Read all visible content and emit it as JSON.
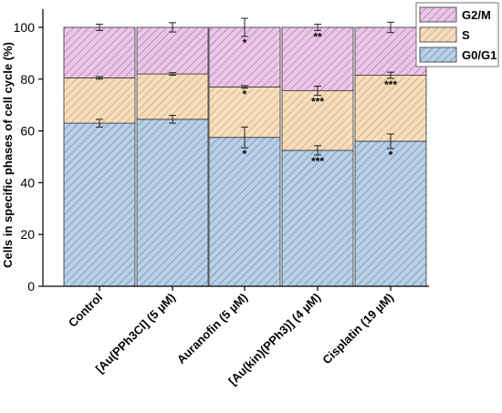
{
  "chart_data": {
    "type": "bar",
    "stacked": true,
    "ylabel": "Cells in specific phases of cell cycle (%)",
    "xlabel": "",
    "ylim": [
      0,
      100
    ],
    "yticks": [
      0,
      20,
      40,
      60,
      80,
      100
    ],
    "legend_position": "top-right",
    "categories": [
      "Control",
      "[Au(PPh3Cl] (5 µM)",
      "Auranofin (5 µM)",
      "[Au(kin)(PPh3)] (4 µM)",
      "Cisplatin (19 µM)"
    ],
    "series": [
      {
        "name": "G0/G1",
        "values": [
          63.0,
          64.5,
          57.5,
          52.5,
          56.0
        ],
        "errors": [
          1.5,
          1.5,
          4.0,
          1.8,
          2.8
        ],
        "significance": [
          "",
          "",
          "*",
          "***",
          "*"
        ],
        "fill": "#b9d0e6",
        "hatch": "#6f93bb"
      },
      {
        "name": "S",
        "values": [
          17.5,
          17.5,
          19.5,
          23.0,
          25.5
        ],
        "errors": [
          0.5,
          0.5,
          0.5,
          1.8,
          1.2
        ],
        "significance": [
          "",
          "",
          "*",
          "***",
          "***"
        ],
        "fill": "#f6dfbf",
        "hatch": "#d3a76f"
      },
      {
        "name": "G2/M",
        "values": [
          19.5,
          18.0,
          23.0,
          24.5,
          18.5
        ],
        "errors": [
          1.2,
          1.8,
          3.5,
          1.2,
          2.0
        ],
        "significance": [
          "",
          "",
          "*",
          "**",
          ""
        ],
        "fill": "#ecc6e8",
        "hatch": "#b27fb0"
      }
    ]
  }
}
